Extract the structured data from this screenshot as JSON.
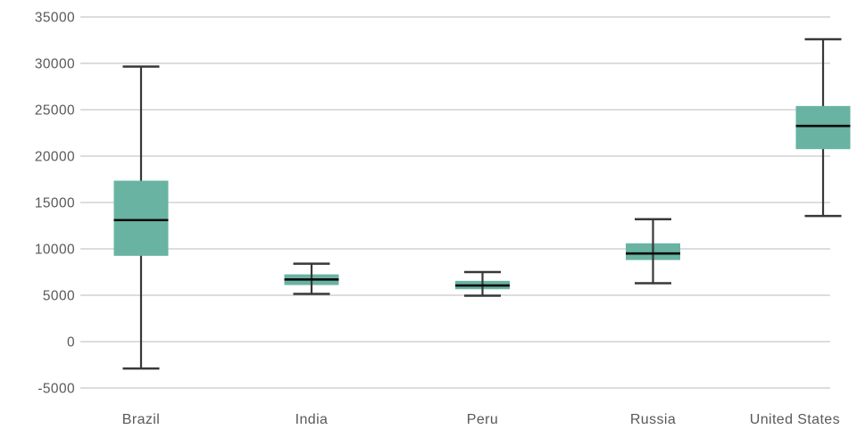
{
  "chart_data": {
    "type": "boxplot",
    "title": "",
    "xlabel": "",
    "ylabel": "",
    "categories": [
      "Brazil",
      "India",
      "Peru",
      "Russia",
      "United States"
    ],
    "series": [
      {
        "name": "Brazil",
        "min": -2900,
        "q1": 9250,
        "median": 13100,
        "q3": 17350,
        "max": 29650
      },
      {
        "name": "India",
        "min": 5150,
        "q1": 6100,
        "median": 6700,
        "q3": 7250,
        "max": 8400
      },
      {
        "name": "Peru",
        "min": 4950,
        "q1": 5650,
        "median": 6050,
        "q3": 6550,
        "max": 7500
      },
      {
        "name": "Russia",
        "min": 6300,
        "q1": 8800,
        "median": 9500,
        "q3": 10600,
        "max": 13200
      },
      {
        "name": "United States",
        "min": 13550,
        "q1": 20750,
        "median": 23250,
        "q3": 25400,
        "max": 32600
      }
    ],
    "ylim": [
      -5000,
      35000
    ],
    "ytick_step": 5000,
    "ytick_labels": [
      "35000",
      "30000",
      "25000",
      "20000",
      "15000",
      "10000",
      "5000",
      "0",
      "-5000"
    ],
    "grid": "horizontal-only",
    "legend": "none",
    "layout_hints": {
      "stem_over_box": [
        false,
        true,
        true,
        true,
        false
      ],
      "gridline_color": "#d8d8d8",
      "box_fill_color": "#69b3a2",
      "median_color": "#0a0a0a",
      "whisker_color": "#383838",
      "tick_label_color": "#595959"
    }
  }
}
